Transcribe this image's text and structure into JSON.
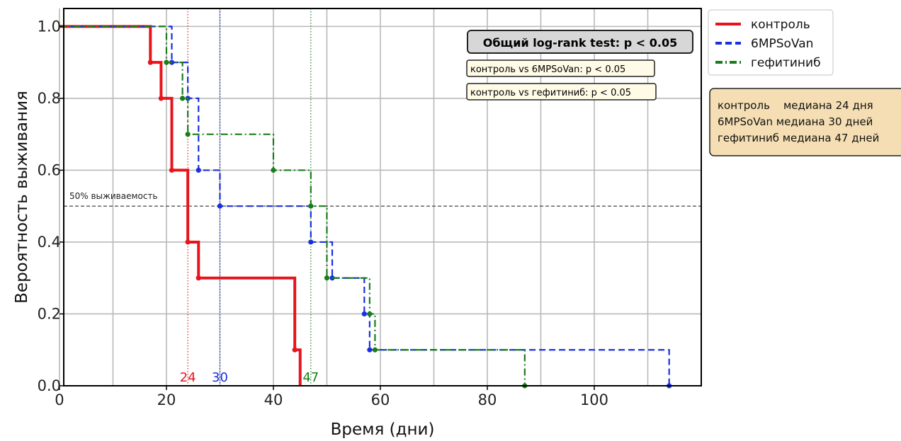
{
  "chart_data": {
    "type": "line",
    "xlabel": "Время (дни)",
    "ylabel": "Вероятность выживания",
    "xlim": [
      0,
      120
    ],
    "ylim": [
      0,
      1.05
    ],
    "x_ticks": [
      0,
      20,
      40,
      60,
      80,
      100
    ],
    "y_ticks": [
      0.0,
      0.2,
      0.4,
      0.6,
      0.8,
      1.0
    ],
    "x_tick_labels": [
      "0",
      "20",
      "40",
      "60",
      "80",
      "100"
    ],
    "y_tick_labels": [
      "0.0",
      "0.2",
      "0.4",
      "0.6",
      "0.8",
      "1.0"
    ],
    "grid": true,
    "legend_position": "outside-top-right",
    "series": [
      {
        "name": "контроль",
        "color": "#e8141b",
        "style": "solid",
        "x": [
          0,
          17,
          19,
          21,
          24,
          26,
          44,
          45
        ],
        "y": [
          1.0,
          0.9,
          0.8,
          0.6,
          0.4,
          0.3,
          0.1,
          0.0
        ],
        "markers": [
          [
            17,
            0.9
          ],
          [
            19,
            0.8
          ],
          [
            21,
            0.6
          ],
          [
            24,
            0.4
          ],
          [
            26,
            0.3
          ],
          [
            44,
            0.1
          ]
        ],
        "median": 24,
        "median_label": "24"
      },
      {
        "name": "6MPSoVan",
        "color": "#1b2fe0",
        "style": "dashed",
        "x": [
          0,
          21,
          24,
          26,
          30,
          47,
          51,
          57,
          58,
          114
        ],
        "y": [
          1.0,
          0.9,
          0.8,
          0.6,
          0.5,
          0.4,
          0.3,
          0.2,
          0.1,
          0.0
        ],
        "markers": [
          [
            21,
            0.9
          ],
          [
            24,
            0.8
          ],
          [
            26,
            0.6
          ],
          [
            30,
            0.5
          ],
          [
            47,
            0.4
          ],
          [
            51,
            0.3
          ],
          [
            57,
            0.2
          ],
          [
            58,
            0.1
          ],
          [
            114,
            0.0
          ]
        ],
        "median": 30,
        "median_label": "30"
      },
      {
        "name": "гефитиниб",
        "color": "#1a7d1a",
        "style": "dashdot",
        "x": [
          0,
          20,
          23,
          24,
          40,
          47,
          50,
          58,
          59,
          87
        ],
        "y": [
          1.0,
          0.9,
          0.8,
          0.7,
          0.6,
          0.5,
          0.3,
          0.2,
          0.1,
          0.0
        ],
        "markers": [
          [
            20,
            0.9
          ],
          [
            23,
            0.8
          ],
          [
            24,
            0.7
          ],
          [
            40,
            0.6
          ],
          [
            47,
            0.5
          ],
          [
            50,
            0.3
          ],
          [
            58,
            0.2
          ],
          [
            59,
            0.1
          ],
          [
            87,
            0.0
          ]
        ],
        "median": 47,
        "median_label": "47"
      }
    ],
    "reference_line": {
      "y": 0.5,
      "label": "50% выживаемость"
    },
    "annotations": {
      "overall_test": "Общий log-rank test: p < 0.05",
      "pairwise": [
        "контроль vs 6MPSoVan: p < 0.05",
        "контроль vs гефитиниб: p < 0.05"
      ],
      "medians_box": [
        "контроль    медиана 24 дня",
        "6MPSoVan медиана 30 дней",
        "гефитиниб медиана 47 дней"
      ]
    }
  }
}
